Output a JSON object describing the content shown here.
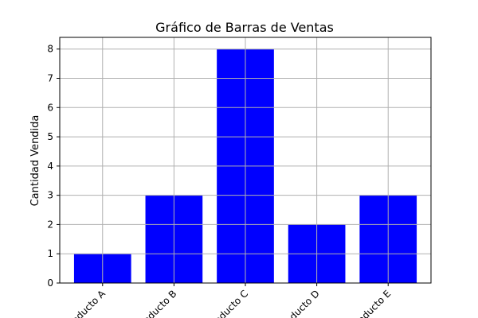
{
  "chart_data": {
    "type": "bar",
    "title": "Gráfico de Barras de Ventas",
    "xlabel": "",
    "ylabel": "Cantidad Vendida",
    "categories": [
      "Producto A",
      "Producto B",
      "Producto C",
      "Producto D",
      "Producto E"
    ],
    "values": [
      1,
      3,
      8,
      2,
      3
    ],
    "ylim": [
      0,
      8.4
    ],
    "yticks": [
      0,
      1,
      2,
      3,
      4,
      5,
      6,
      7,
      8
    ],
    "grid": true,
    "x_tick_rotation": "45 degrees, right-aligned",
    "bar_color": "#0000ff"
  }
}
